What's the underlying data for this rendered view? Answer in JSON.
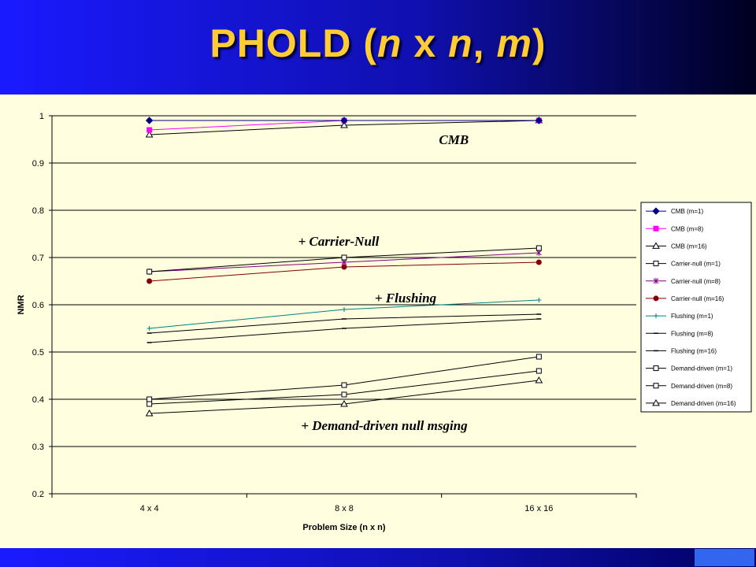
{
  "slide": {
    "title_prefix": "PHOLD (",
    "title_n1": "n",
    "title_x": " x ",
    "title_n2": "n",
    "title_comma": ", ",
    "title_m": "m",
    "title_suffix": ")"
  },
  "chart_data": {
    "type": "line",
    "categories": [
      "4 x 4",
      "8 x 8",
      "16 x 16"
    ],
    "xlabel": "Problem Size (n x n)",
    "ylabel": "NMR",
    "ylim": [
      0.2,
      1.0
    ],
    "yticks": [
      "0.2",
      "0.3",
      "0.4",
      "0.5",
      "0.6",
      "0.7",
      "0.8",
      "0.9",
      "1"
    ],
    "grid": "horizontal",
    "legend": "right",
    "series": [
      {
        "name": "CMB (m=1)",
        "values": [
          0.99,
          0.99,
          0.99
        ],
        "color": "#000080",
        "marker": "diamond-filled"
      },
      {
        "name": "CMB (m=8)",
        "values": [
          0.97,
          0.99,
          0.99
        ],
        "color": "#ff00ff",
        "marker": "square-filled"
      },
      {
        "name": "CMB (m=16)",
        "values": [
          0.96,
          0.98,
          0.99
        ],
        "color": "#000000",
        "marker": "triangle-open"
      },
      {
        "name": "Carrier-null (m=1)",
        "values": [
          0.67,
          0.7,
          0.72
        ],
        "color": "#000000",
        "marker": "square-open"
      },
      {
        "name": "Carrier-null (m=8)",
        "values": [
          0.67,
          0.69,
          0.71
        ],
        "color": "#800080",
        "marker": "star"
      },
      {
        "name": "Carrier-null (m=16)",
        "values": [
          0.65,
          0.68,
          0.69
        ],
        "color": "#800000",
        "marker": "circle-filled"
      },
      {
        "name": "Flushing (m=1)",
        "values": [
          0.55,
          0.59,
          0.61
        ],
        "color": "#008080",
        "marker": "plus"
      },
      {
        "name": "Flushing (m=8)",
        "values": [
          0.54,
          0.57,
          0.58
        ],
        "color": "#000000",
        "marker": "dash"
      },
      {
        "name": "Flushing (m=16)",
        "values": [
          0.52,
          0.55,
          0.57
        ],
        "color": "#000000",
        "marker": "dash"
      },
      {
        "name": "Demand-driven (m=1)",
        "values": [
          0.4,
          0.43,
          0.49
        ],
        "color": "#000000",
        "marker": "square-open"
      },
      {
        "name": "Demand-driven (m=8)",
        "values": [
          0.39,
          0.41,
          0.46
        ],
        "color": "#000000",
        "marker": "square-open"
      },
      {
        "name": "Demand-driven (m=16)",
        "values": [
          0.37,
          0.39,
          0.44
        ],
        "color": "#000000",
        "marker": "triangle-open"
      }
    ],
    "annotations": [
      {
        "text": "CMB",
        "x": "16 x 16",
        "y": 0.95
      },
      {
        "text": "+ Carrier-Null",
        "x": "8 x 8",
        "y": 0.735
      },
      {
        "text": "+ Flushing",
        "x": "8 x 8",
        "y": 0.615
      },
      {
        "text": "+ Demand-driven null msging",
        "x": "8 x 8",
        "y": 0.345
      }
    ]
  }
}
